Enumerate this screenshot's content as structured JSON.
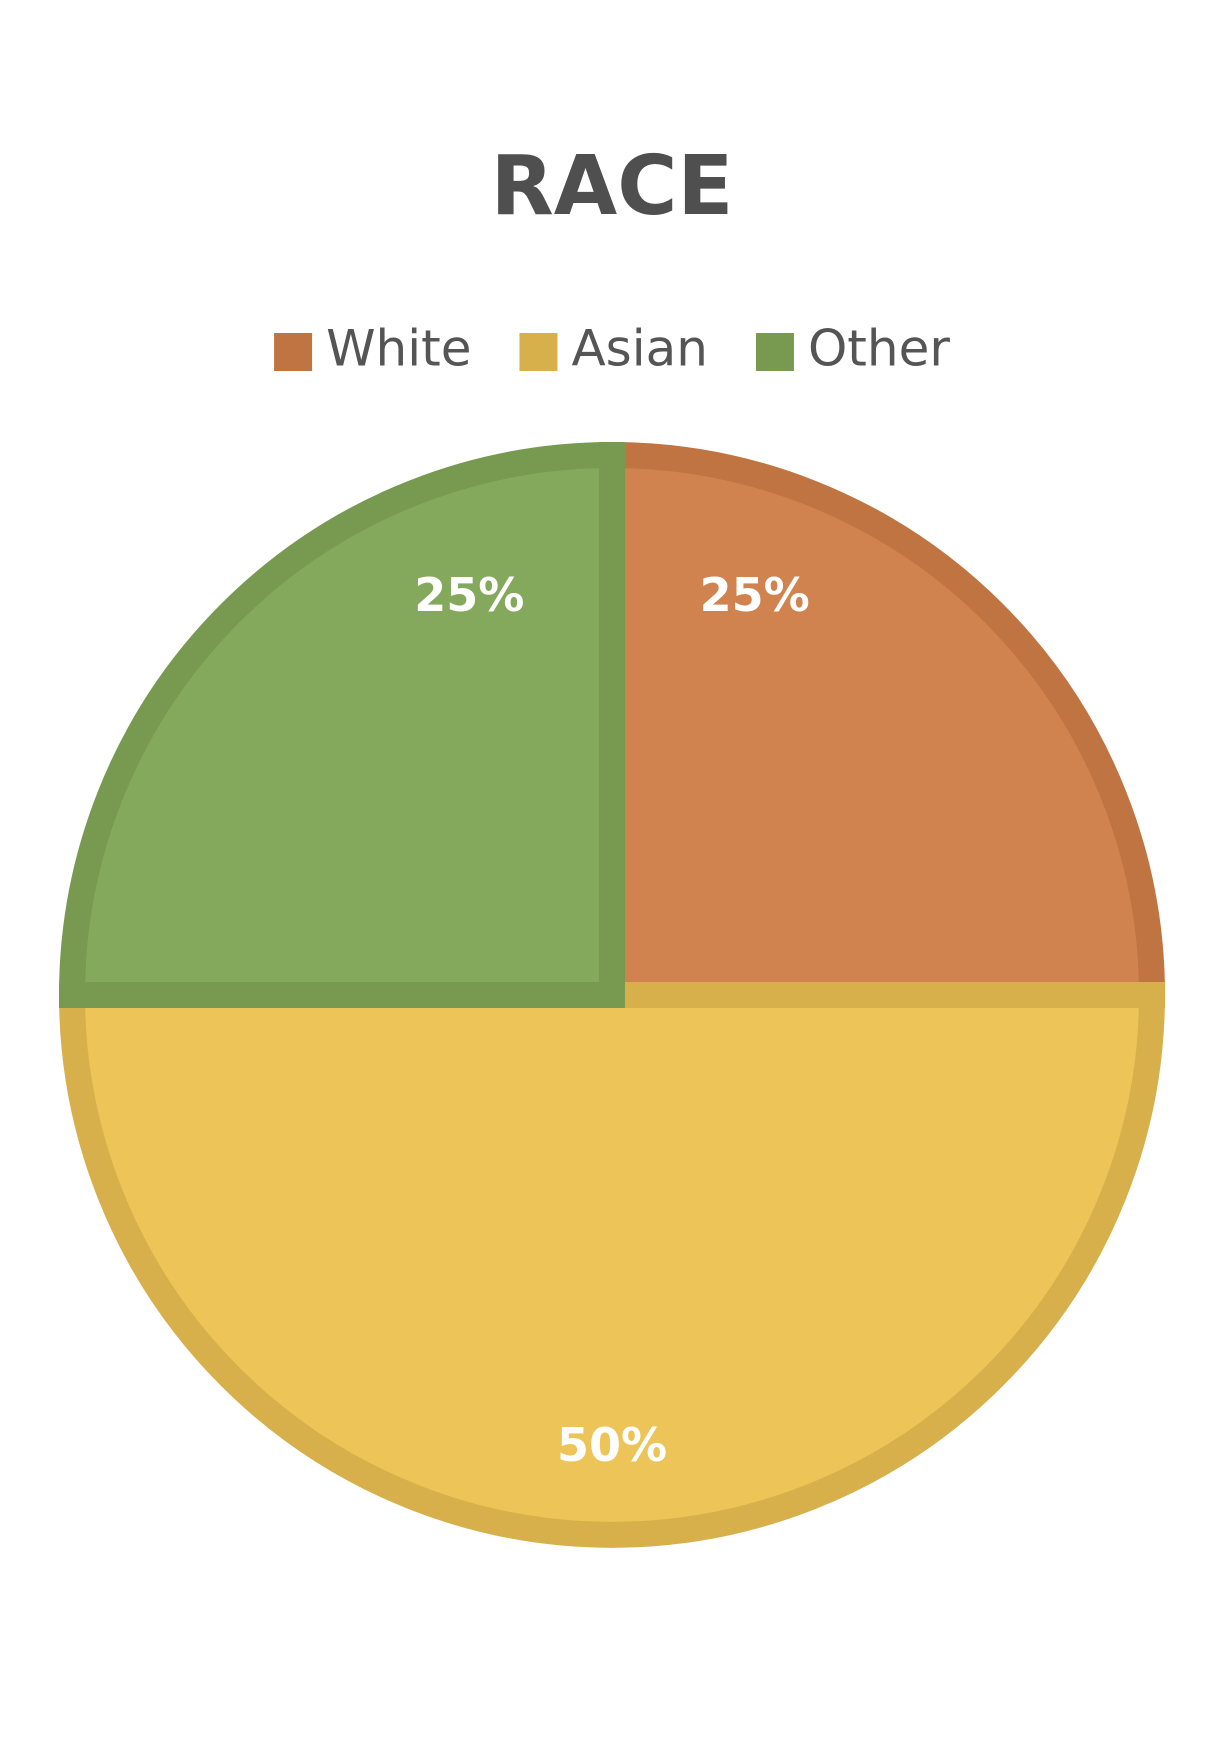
{
  "chart_data": {
    "type": "pie",
    "title": "RACE",
    "legend_position": "top",
    "start_angle_deg": 0,
    "direction": "clockwise",
    "slices": [
      {
        "label": "White",
        "value": 25,
        "data_label": "25%",
        "color": "#d1834f",
        "border_color": "#bf7441"
      },
      {
        "label": "Asian",
        "value": 50,
        "data_label": "50%",
        "color": "#ecc458",
        "border_color": "#d7b04c"
      },
      {
        "label": "Other",
        "value": 25,
        "data_label": "25%",
        "color": "#84a85c",
        "border_color": "#789a50"
      }
    ]
  }
}
